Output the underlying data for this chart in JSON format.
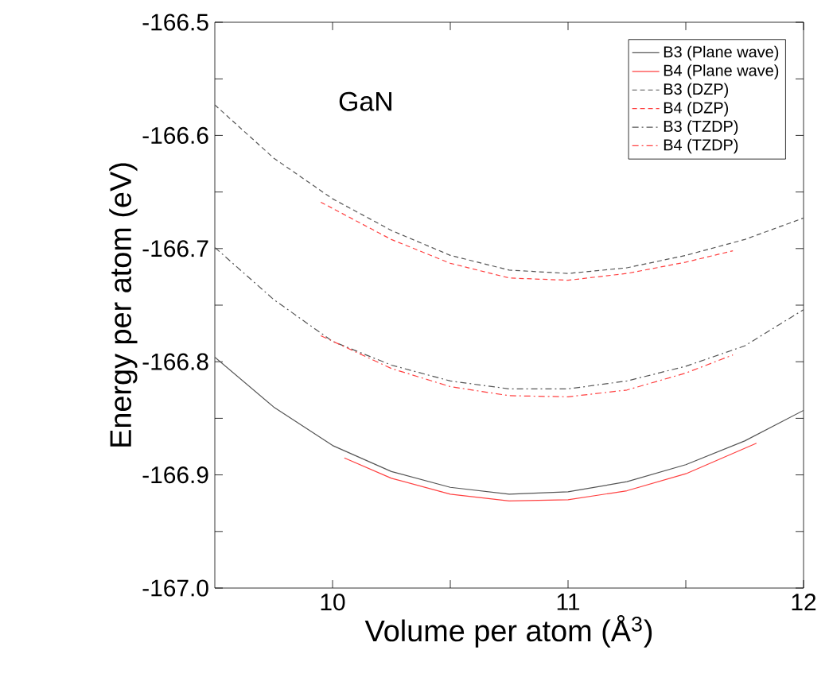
{
  "chart_data": {
    "type": "line",
    "xlabel": "Volume per atom (Å$^{3}$)",
    "ylabel": "Energy per atom (eV)",
    "annotations": [
      "GaN"
    ],
    "xlim": [
      9.5,
      12
    ],
    "ylim": [
      -167.0,
      -166.5
    ],
    "xticks": [
      10,
      {
        "value": 10.5,
        "label": null
      },
      11,
      {
        "value": 11.5,
        "label": null
      },
      12
    ],
    "yticks": [
      {
        "value": -167,
        "label": "-167.0"
      },
      {
        "value": -166.95,
        "label": null
      },
      -166.9,
      {
        "value": -166.85,
        "label": null
      },
      -166.8,
      {
        "value": -166.75,
        "label": null
      },
      -166.7,
      {
        "value": -166.65,
        "label": null
      },
      -166.6,
      {
        "value": -166.55,
        "label": null
      },
      -166.5
    ],
    "legend": "top right",
    "grid": false,
    "marker": "none",
    "series": [
      {
        "name": "B3 (Plane wave)",
        "color": "#555555",
        "line_style": "solid",
        "x": [
          9.5,
          9.75,
          10,
          10.25,
          10.5,
          10.75,
          11,
          11.25,
          11.5,
          11.75,
          12
        ],
        "values": [
          -166.796,
          -166.84,
          -166.874,
          -166.897,
          -166.911,
          -166.917,
          -166.915,
          -166.906,
          -166.891,
          -166.87,
          -166.843
        ]
      },
      {
        "name": "B4 (Plane wave)",
        "color": "#ff4040",
        "line_style": "solid",
        "x": [
          10.05,
          10.25,
          10.5,
          10.75,
          11,
          11.25,
          11.5,
          11.8
        ],
        "values": [
          -166.885,
          -166.903,
          -166.917,
          -166.923,
          -166.922,
          -166.914,
          -166.899,
          -166.872
        ]
      },
      {
        "name": "B3 (DZP)",
        "color": "#555555",
        "line_style": "dashed",
        "x": [
          9.5,
          9.75,
          10,
          10.25,
          10.5,
          10.75,
          11,
          11.25,
          11.5,
          11.75,
          12
        ],
        "values": [
          -166.573,
          -166.62,
          -166.656,
          -166.684,
          -166.706,
          -166.719,
          -166.722,
          -166.717,
          -166.706,
          -166.692,
          -166.673
        ]
      },
      {
        "name": "B4 (DZP)",
        "color": "#ff4040",
        "line_style": "dashed",
        "x": [
          9.95,
          10.25,
          10.5,
          10.75,
          11,
          11.25,
          11.5,
          11.7
        ],
        "values": [
          -166.659,
          -166.692,
          -166.713,
          -166.726,
          -166.728,
          -166.722,
          -166.712,
          -166.702
        ]
      },
      {
        "name": "B3 (TZDP)",
        "color": "#555555",
        "line_style": "dashdot",
        "x": [
          9.5,
          9.75,
          10,
          10.25,
          10.5,
          10.75,
          11,
          11.25,
          11.5,
          11.75,
          12
        ],
        "values": [
          -166.699,
          -166.745,
          -166.782,
          -166.803,
          -166.817,
          -166.824,
          -166.824,
          -166.817,
          -166.804,
          -166.786,
          -166.754
        ]
      },
      {
        "name": "B4 (TZDP)",
        "color": "#ff4040",
        "line_style": "dashdot",
        "x": [
          9.95,
          10.25,
          10.5,
          10.75,
          11,
          11.25,
          11.5,
          11.7
        ],
        "values": [
          -166.777,
          -166.806,
          -166.822,
          -166.83,
          -166.831,
          -166.825,
          -166.81,
          -166.794
        ]
      }
    ]
  }
}
